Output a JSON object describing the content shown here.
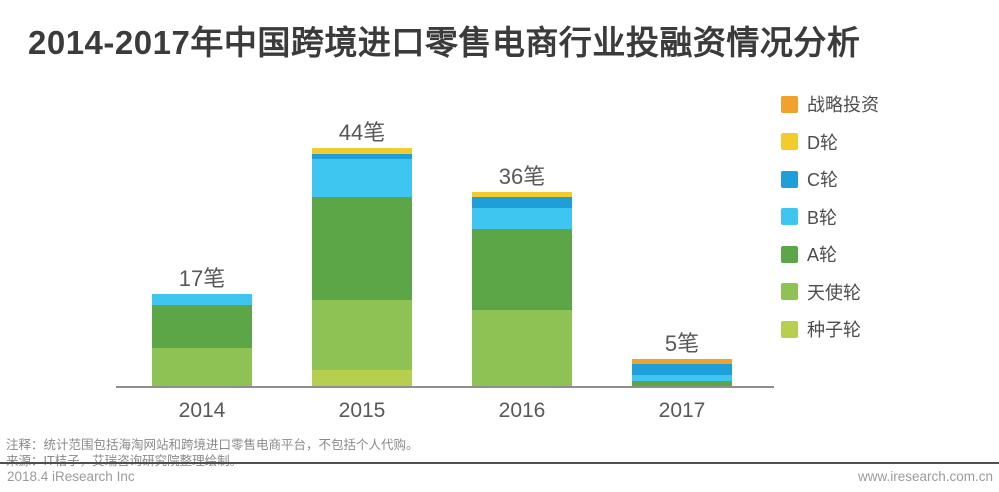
{
  "header": {
    "title": "2014-2017年中国跨境进口零售电商行业投融资情况分析"
  },
  "chart_data": {
    "type": "bar",
    "stacked": true,
    "title": "2014-2017年中国跨境进口零售电商行业投融资情况分析",
    "unit": "笔",
    "categories": [
      "2014",
      "2015",
      "2016",
      "2017"
    ],
    "totals": [
      17,
      44,
      36,
      5
    ],
    "bar_labels": [
      "17笔",
      "44笔",
      "36笔",
      "5笔"
    ],
    "series": [
      {
        "name": "种子轮",
        "color": "#b6cf4f",
        "values": [
          0,
          3,
          0,
          0
        ]
      },
      {
        "name": "天使轮",
        "color": "#8fc254",
        "values": [
          7,
          13,
          14,
          0
        ]
      },
      {
        "name": "A轮",
        "color": "#5ca647",
        "values": [
          8,
          19,
          15,
          1
        ]
      },
      {
        "name": "B轮",
        "color": "#3fc6f0",
        "values": [
          2,
          7,
          4,
          1
        ]
      },
      {
        "name": "C轮",
        "color": "#1f9fd8",
        "values": [
          0,
          1,
          2,
          2
        ]
      },
      {
        "name": "D轮",
        "color": "#f2cb2f",
        "values": [
          0,
          1,
          1,
          0
        ]
      },
      {
        "name": "战略投资",
        "color": "#efa32c",
        "values": [
          0,
          0,
          0,
          1
        ]
      }
    ],
    "legend_order_top_to_bottom": [
      "战略投资",
      "D轮",
      "C轮",
      "B轮",
      "A轮",
      "天使轮",
      "种子轮"
    ],
    "legend_position": "right",
    "grid": false,
    "xlabel": "",
    "ylabel": "",
    "ylim": [
      0,
      46
    ]
  },
  "footer": {
    "note": "注释：统计范围包括海淘网站和跨境进口零售电商平台，不包括个人代购。",
    "source": "来源：IT桔子，艾瑞咨询研究院整理绘制。",
    "date_brand": "2018.4 iResearch Inc",
    "website": "www.iresearch.com.cn"
  }
}
